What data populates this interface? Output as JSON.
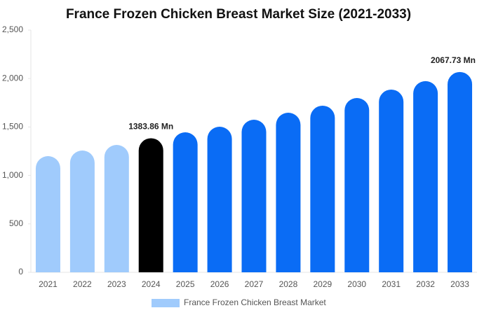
{
  "chart_data": {
    "type": "bar",
    "title": "France Frozen Chicken Breast Market Size (2021-2033)",
    "categories": [
      "2021",
      "2022",
      "2023",
      "2024",
      "2025",
      "2026",
      "2027",
      "2028",
      "2029",
      "2030",
      "2031",
      "2032",
      "2033"
    ],
    "series": [
      {
        "name": "France Frozen Chicken Breast Market",
        "color": "#a0cbfc",
        "values": [
          1199,
          1257,
          1315,
          1383.86,
          1445,
          1503,
          1575,
          1647,
          1720,
          1799,
          1886,
          1973,
          2067.73
        ],
        "value_labels": [
          null,
          null,
          null,
          "1383.86 Mn",
          null,
          null,
          null,
          null,
          null,
          null,
          null,
          null,
          "2067.73 Mn"
        ],
        "colors": [
          "#a0cbfc",
          "#a0cbfc",
          "#a0cbfc",
          "#000000",
          "#0a6cf5",
          "#0a6cf5",
          "#0a6cf5",
          "#0a6cf5",
          "#0a6cf5",
          "#0a6cf5",
          "#0a6cf5",
          "#0a6cf5",
          "#0a6cf5"
        ]
      }
    ],
    "ylim": [
      0,
      2500
    ],
    "yticks": [
      0,
      500,
      {
        "value": 1000,
        "label": "1,000"
      },
      {
        "value": 1500,
        "label": "1,500"
      },
      {
        "value": 2000,
        "label": "2,000"
      },
      {
        "value": 2500,
        "label": "2,500"
      }
    ],
    "grid": false,
    "legend": "bottom"
  }
}
